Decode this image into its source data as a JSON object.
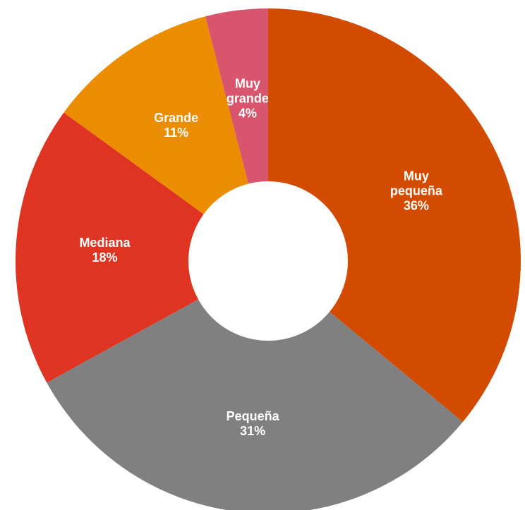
{
  "chart_data": {
    "type": "donut",
    "categories": [
      "Muy pequeña",
      "Pequeña",
      "Mediana",
      "Grande",
      "Muy grande"
    ],
    "values": [
      36,
      31,
      18,
      11,
      4
    ],
    "value_labels": [
      "36%",
      "31%",
      "18%",
      "11%",
      "4%"
    ],
    "colors": [
      "#d24b00",
      "#808080",
      "#e03422",
      "#ec8c00",
      "#d9556e"
    ]
  }
}
